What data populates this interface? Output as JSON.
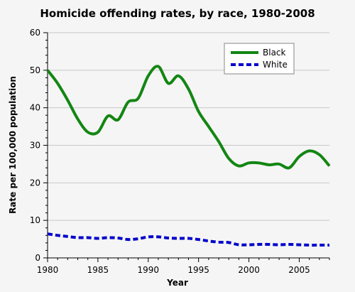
{
  "chart_data": {
    "type": "line",
    "title": "Homicide offending rates, by race, 1980-2008",
    "xlabel": "Year",
    "ylabel": "Rate per 100,000 population",
    "xlim": [
      1980,
      2008
    ],
    "ylim": [
      0,
      60
    ],
    "x_ticks": [
      1980,
      1985,
      1990,
      1995,
      2000,
      2005
    ],
    "y_ticks": [
      0,
      10,
      20,
      30,
      40,
      50,
      60
    ],
    "grid": "horizontal",
    "legend_position": "top-right",
    "x": [
      1980,
      1981,
      1982,
      1983,
      1984,
      1985,
      1986,
      1987,
      1988,
      1989,
      1990,
      1991,
      1992,
      1993,
      1994,
      1995,
      1996,
      1997,
      1998,
      1999,
      2000,
      2001,
      2002,
      2003,
      2004,
      2005,
      2006,
      2007,
      2008
    ],
    "series": [
      {
        "name": "Black",
        "color": "#138613",
        "style": "solid",
        "values": [
          50.0,
          46.5,
          42.0,
          37.0,
          33.5,
          33.5,
          37.8,
          36.8,
          41.5,
          42.5,
          48.5,
          51.0,
          46.5,
          48.5,
          45.0,
          39.0,
          35.0,
          31.0,
          26.5,
          24.5,
          25.3,
          25.3,
          24.8,
          25.0,
          24.0,
          27.0,
          28.5,
          27.5,
          24.5
        ]
      },
      {
        "name": "White",
        "color": "#0000cc",
        "style": "dashed",
        "values": [
          6.4,
          6.0,
          5.7,
          5.4,
          5.4,
          5.2,
          5.4,
          5.3,
          4.9,
          5.1,
          5.6,
          5.6,
          5.3,
          5.2,
          5.2,
          4.9,
          4.5,
          4.2,
          4.1,
          3.5,
          3.5,
          3.6,
          3.6,
          3.5,
          3.6,
          3.5,
          3.4,
          3.4,
          3.4
        ]
      }
    ]
  }
}
